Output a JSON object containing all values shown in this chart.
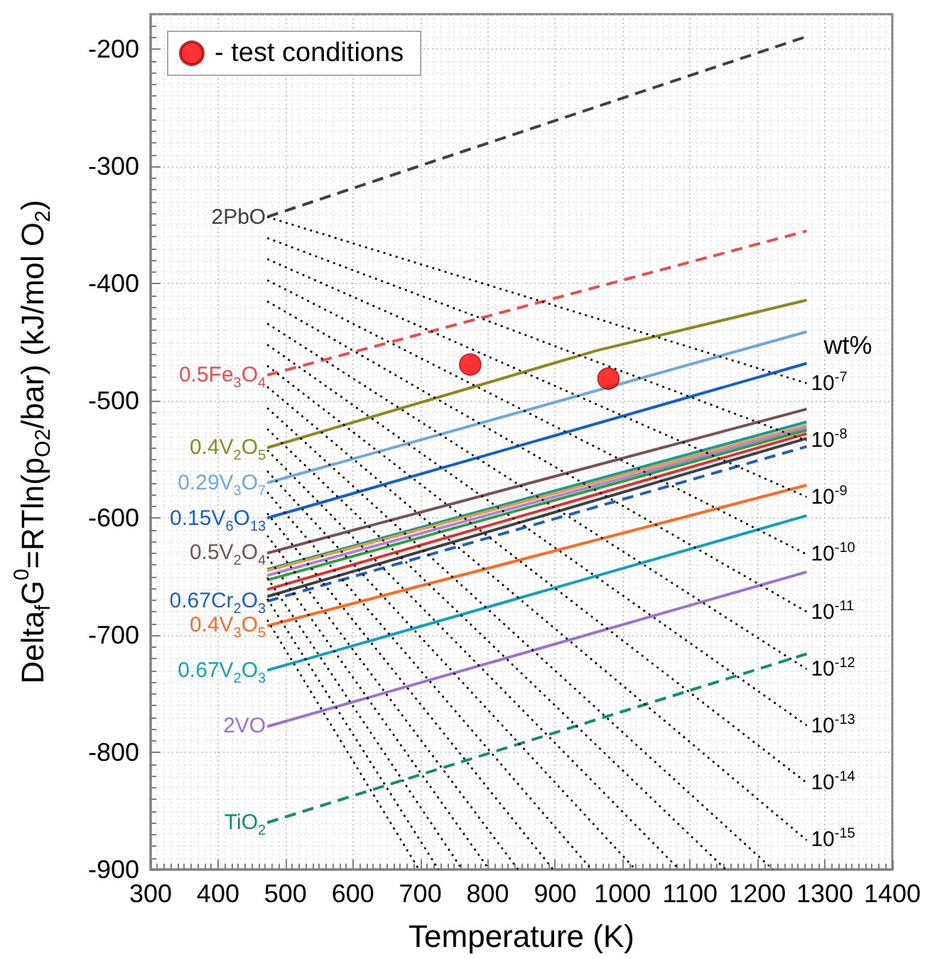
{
  "chart_data": {
    "type": "line",
    "xlabel": "Temperature (K)",
    "ylabel": "Delta$_{f}$G$^{0}$=RTln(p$_{O2}$/bar) (kJ/mol O$_{2}$)",
    "xlim": [
      300,
      1400
    ],
    "xticks": [
      300,
      400,
      500,
      600,
      700,
      800,
      900,
      1000,
      1100,
      1200,
      1300,
      1400
    ],
    "ylim": [
      -900,
      -170
    ],
    "yticks": [
      -900,
      -800,
      -700,
      -600,
      -500,
      -400,
      -300,
      -200
    ],
    "grid": true,
    "legend": "top left",
    "annotations": [
      "wt%"
    ],
    "series": [
      {
        "name": "2PbO",
        "color": "#404040",
        "line_style": "dashed",
        "x": [
          473,
          1273
        ],
        "values": [
          -343,
          -189
        ]
      },
      {
        "name": "0.5Fe$_{3}$O$_{4}$",
        "color": "#f04a4a",
        "line_style": "dashed",
        "x": [
          473,
          1273
        ],
        "values": [
          -478,
          -355
        ]
      },
      {
        "name": "0.4V$_{2}$O$_{5}$",
        "color": "#8c8a1c",
        "line_style": "solid",
        "x": [
          473,
          962,
          1273
        ],
        "values": [
          -540,
          -457,
          -414
        ]
      },
      {
        "name": "0.29V$_{3}$O$_{7}$",
        "color": "#6fa8dc",
        "line_style": "solid",
        "x": [
          473,
          1273
        ],
        "values": [
          -570,
          -441
        ]
      },
      {
        "name": "0.15V$_{6}$O$_{13}$",
        "color": "#1060d0",
        "line_style": "solid",
        "x": [
          473,
          1273
        ],
        "values": [
          -600,
          -468
        ]
      },
      {
        "name": "0.5V$_{2}$O$_{4}$",
        "color": "#7a5050",
        "line_style": "solid",
        "x": [
          473,
          1273
        ],
        "values": [
          -630,
          -507
        ]
      },
      {
        "color": "#1a9a9a",
        "line_style": "solid",
        "x": [
          473,
          1273
        ],
        "values": [
          -644,
          -518
        ]
      },
      {
        "color": "#e0a040",
        "line_style": "solid",
        "x": [
          473,
          1273
        ],
        "values": [
          -645,
          -521
        ]
      },
      {
        "color": "#b080e0",
        "line_style": "solid",
        "x": [
          473,
          1273
        ],
        "values": [
          -649,
          -523
        ]
      },
      {
        "color": "#30a040",
        "line_style": "solid",
        "x": [
          473,
          1273
        ],
        "values": [
          -653,
          -525
        ]
      },
      {
        "color": "#e03030",
        "line_style": "solid",
        "x": [
          473,
          1273
        ],
        "values": [
          -661,
          -528
        ]
      },
      {
        "color": "#404040",
        "line_style": "solid",
        "x": [
          473,
          1273
        ],
        "values": [
          -667,
          -532
        ]
      },
      {
        "name": "0.67Cr$_{2}$O$_{3}$",
        "color": "#1f5fc0",
        "line_style": "dashed",
        "x": [
          473,
          1273
        ],
        "values": [
          -671,
          -539
        ]
      },
      {
        "name": "0.4V$_{3}$O$_{5}$",
        "color": "#ff6a20",
        "line_style": "solid",
        "x": [
          473,
          1273
        ],
        "values": [
          -692,
          -572
        ]
      },
      {
        "name": "0.67V$_{2}$O$_{3}$",
        "color": "#10a0c0",
        "line_style": "solid",
        "x": [
          473,
          1273
        ],
        "values": [
          -730,
          -598
        ]
      },
      {
        "name": "2VO",
        "color": "#a070d0",
        "line_style": "solid",
        "x": [
          473,
          1273
        ],
        "values": [
          -778,
          -646
        ]
      },
      {
        "name": "TiO$_{2}$",
        "color": "#109070",
        "line_style": "dashed",
        "x": [
          473,
          1273
        ],
        "values": [
          -860,
          -716
        ]
      },
      {
        "name": "10$^{-7}$",
        "color": "#000000",
        "line_style": "dotted",
        "x": [
          473,
          1273
        ],
        "values": [
          -343,
          -485
        ]
      },
      {
        "name": "10$^{-8}$",
        "color": "#000000",
        "line_style": "dotted",
        "x": [
          473,
          1273
        ],
        "values": [
          -361,
          -534
        ]
      },
      {
        "name": "10$^{-9}$",
        "color": "#000000",
        "line_style": "dotted",
        "x": [
          473,
          1273
        ],
        "values": [
          -379,
          -582
        ]
      },
      {
        "name": "10$^{-10}$",
        "color": "#000000",
        "line_style": "dotted",
        "x": [
          473,
          1273
        ],
        "values": [
          -397,
          -631
        ]
      },
      {
        "name": "10$^{-11}$",
        "color": "#000000",
        "line_style": "dotted",
        "x": [
          473,
          1273
        ],
        "values": [
          -415,
          -680
        ]
      },
      {
        "name": "10$^{-12}$",
        "color": "#000000",
        "line_style": "dotted",
        "x": [
          473,
          1273
        ],
        "values": [
          -434,
          -729
        ]
      },
      {
        "name": "10$^{-13}$",
        "color": "#000000",
        "line_style": "dotted",
        "x": [
          473,
          1273
        ],
        "values": [
          -452,
          -777
        ]
      },
      {
        "name": "10$^{-14}$",
        "color": "#000000",
        "line_style": "dotted",
        "x": [
          473,
          1273
        ],
        "values": [
          -470,
          -826
        ]
      },
      {
        "name": "10$^{-15}$",
        "color": "#000000",
        "line_style": "dotted",
        "x": [
          473,
          1273
        ],
        "values": [
          -488,
          -875
        ]
      },
      {
        "color": "#000000",
        "line_style": "dotted",
        "x": [
          473,
          1223
        ],
        "values": [
          -506,
          -900
        ]
      },
      {
        "color": "#000000",
        "line_style": "dotted",
        "x": [
          473,
          1153
        ],
        "values": [
          -524,
          -900
        ]
      },
      {
        "color": "#000000",
        "line_style": "dotted",
        "x": [
          473,
          1084
        ],
        "values": [
          -542,
          -900
        ]
      },
      {
        "color": "#000000",
        "line_style": "dotted",
        "x": [
          473,
          1019
        ],
        "values": [
          -560,
          -900
        ]
      },
      {
        "color": "#000000",
        "line_style": "dotted",
        "x": [
          473,
          954
        ],
        "values": [
          -578,
          -900
        ]
      },
      {
        "color": "#000000",
        "line_style": "dotted",
        "x": [
          473,
          897
        ],
        "values": [
          -596,
          -900
        ]
      },
      {
        "color": "#000000",
        "line_style": "dotted",
        "x": [
          473,
          845
        ],
        "values": [
          -615,
          -900
        ]
      },
      {
        "color": "#000000",
        "line_style": "dotted",
        "x": [
          473,
          802
        ],
        "values": [
          -633,
          -900
        ]
      },
      {
        "color": "#000000",
        "line_style": "dotted",
        "x": [
          473,
          762
        ],
        "values": [
          -651,
          -900
        ]
      },
      {
        "color": "#000000",
        "line_style": "dotted",
        "x": [
          473,
          727
        ],
        "values": [
          -669,
          -900
        ]
      },
      {
        "color": "#000000",
        "line_style": "dotted",
        "x": [
          473,
          698
        ],
        "values": [
          -687,
          -900
        ]
      },
      {
        "name": "- test conditions",
        "type": "scatter",
        "color": "#ff0000",
        "x": [
          774,
          979
        ],
        "values": [
          -469,
          -481
        ]
      }
    ]
  }
}
